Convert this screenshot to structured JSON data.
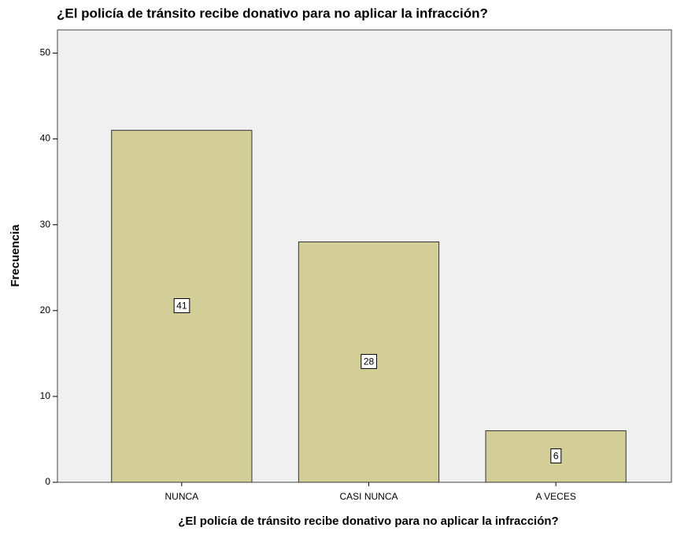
{
  "chart_data": {
    "type": "bar",
    "title": "¿El policía de tránsito recibe donativo para no aplicar la infracción?",
    "x_label": "¿El policía de tránsito recibe donativo para no aplicar la infracción?",
    "y_label": "Frecuencia",
    "categories": [
      "NUNCA",
      "CASI NUNCA",
      "A VECES"
    ],
    "values": [
      41,
      28,
      6
    ],
    "color": "#d3ce97",
    "ylim": [
      0,
      52.7
    ],
    "yticks": [
      0,
      10,
      20,
      30,
      40,
      50
    ],
    "grid": false
  }
}
